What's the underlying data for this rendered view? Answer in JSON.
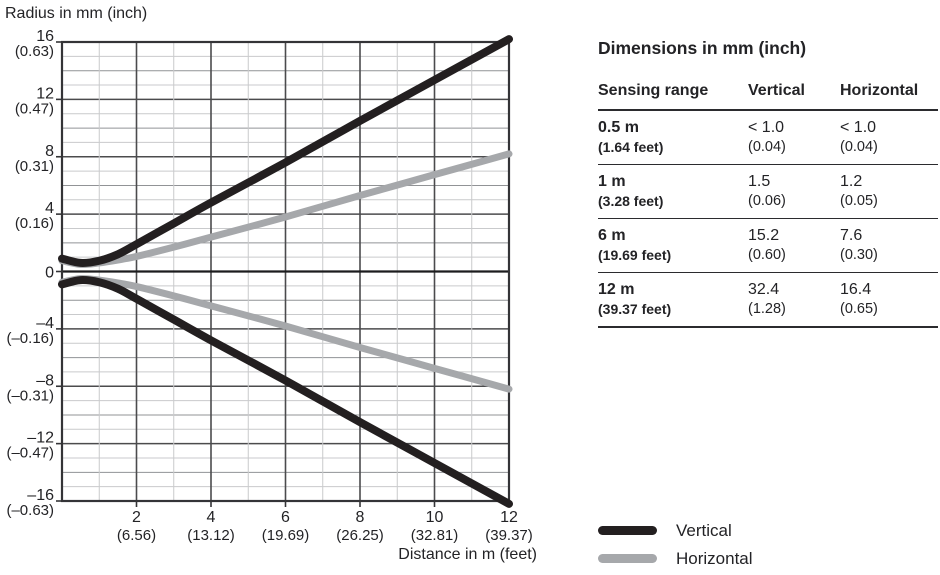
{
  "figure": {
    "ylabel": "Radius in mm (inch)",
    "xlabel": "Distance in m (feet)"
  },
  "chart_data": {
    "type": "line",
    "title": "",
    "xlabel": "Distance in m (feet)",
    "ylabel": "Radius in mm (inch)",
    "xlim": [
      0,
      12
    ],
    "ylim": [
      -16,
      16
    ],
    "grid": {
      "x_minor_m": 1,
      "x_major_m": 2,
      "y_minor_mm": 1,
      "y_semi_mm": 2,
      "y_major_mm": 4
    },
    "legend_position": "bottom-right",
    "x_ticks": [
      {
        "value": 2,
        "label": "2",
        "feet": "(6.56)"
      },
      {
        "value": 4,
        "label": "4",
        "feet": "(13.12)"
      },
      {
        "value": 6,
        "label": "6",
        "feet": "(19.69)"
      },
      {
        "value": 8,
        "label": "8",
        "feet": "(26.25)"
      },
      {
        "value": 10,
        "label": "10",
        "feet": "(32.81)"
      },
      {
        "value": 12,
        "label": "12",
        "feet": "(39.37)"
      }
    ],
    "y_ticks": [
      {
        "value": 16,
        "label": "16",
        "inch": "(0.63)"
      },
      {
        "value": 12,
        "label": "12",
        "inch": "(0.47)"
      },
      {
        "value": 8,
        "label": "8",
        "inch": "(0.31)"
      },
      {
        "value": 4,
        "label": "4",
        "inch": "(0.16)"
      },
      {
        "value": 0,
        "label": "0",
        "inch": ""
      },
      {
        "value": -4,
        "label": "–4",
        "inch": "(–0.16)"
      },
      {
        "value": -8,
        "label": "–8",
        "inch": "(–0.31)"
      },
      {
        "value": -12,
        "label": "–12",
        "inch": "(–0.47)"
      },
      {
        "value": -16,
        "label": "–16",
        "inch": "(–0.63)"
      }
    ],
    "series": [
      {
        "name": "Vertical",
        "color": "#231f20",
        "mirrored": true,
        "stroke_width": 8,
        "x": [
          0,
          0.5,
          1,
          1.5,
          2,
          3,
          4,
          6,
          8,
          10,
          12
        ],
        "y": [
          0.9,
          0.6,
          0.75,
          1.2,
          1.9,
          3.35,
          4.8,
          7.6,
          10.5,
          13.35,
          16.2
        ]
      },
      {
        "name": "Horizontal",
        "color": "#a6a8ab",
        "mirrored": true,
        "stroke_width": 7,
        "x": [
          0,
          0.5,
          1,
          1.5,
          2,
          3,
          4,
          6,
          8,
          10,
          12
        ],
        "y": [
          0.75,
          0.5,
          0.6,
          0.8,
          1.05,
          1.7,
          2.4,
          3.8,
          5.3,
          6.75,
          8.2
        ]
      }
    ],
    "colors": {
      "grid_minor": "#c9cacc",
      "grid_semi": "#919396",
      "grid_major": "#4b4b4d",
      "axis": "#343437",
      "zero_line": "#1c1c1e"
    }
  },
  "table": {
    "title": "Dimensions in mm (inch)",
    "headers": [
      "Sensing range",
      "Vertical",
      "Horizontal"
    ],
    "rows": [
      {
        "range": "0.5 m",
        "range_sub": "(1.64 feet)",
        "vertical": "< 1.0",
        "vertical_sub": "(0.04)",
        "horizontal": "< 1.0",
        "horizontal_sub": "(0.04)"
      },
      {
        "range": "1 m",
        "range_sub": "(3.28 feet)",
        "vertical": "1.5",
        "vertical_sub": "(0.06)",
        "horizontal": "1.2",
        "horizontal_sub": "(0.05)"
      },
      {
        "range": "6 m",
        "range_sub": "(19.69 feet)",
        "vertical": "15.2",
        "vertical_sub": "(0.60)",
        "horizontal": "7.6",
        "horizontal_sub": "(0.30)"
      },
      {
        "range": "12 m",
        "range_sub": "(39.37 feet)",
        "vertical": "32.4",
        "vertical_sub": "(1.28)",
        "horizontal": "16.4",
        "horizontal_sub": "(0.65)"
      }
    ]
  },
  "legend": {
    "items": [
      {
        "label": "Vertical",
        "color": "#231f20"
      },
      {
        "label": "Horizontal",
        "color": "#a6a8ab"
      }
    ]
  }
}
